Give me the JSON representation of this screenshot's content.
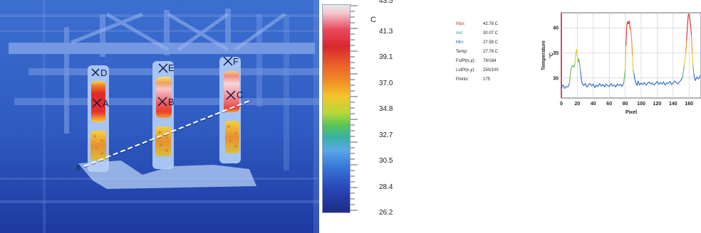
{
  "thermal": {
    "markers": [
      "D",
      "A",
      "E",
      "B",
      "F",
      "C",
      "X"
    ]
  },
  "colorbar": {
    "unit": "C",
    "ticks": [
      "43.5",
      "41.3",
      "39.1",
      "37.0",
      "34.8",
      "32.7",
      "30.5",
      "28.4",
      "26.2"
    ]
  },
  "stats": {
    "rows": [
      {
        "key": "Max:",
        "value": "42.78 C",
        "color": "#d03030"
      },
      {
        "key": "Avr:",
        "value": "30.07 C",
        "color": "#2e9e58"
      },
      {
        "key": "Min:",
        "value": "27.59 C",
        "color": "#2a56c8"
      },
      {
        "key": "Temp:",
        "value": "27.78 C",
        "color": "#222222"
      },
      {
        "key": "FstPt(x,y):",
        "value": "78/184",
        "color": "#222222"
      },
      {
        "key": "LstPt(x,y):",
        "value": "250/100",
        "color": "#222222"
      },
      {
        "key": "Points:",
        "value": "175",
        "color": "#222222"
      }
    ]
  },
  "chart_data": {
    "type": "line",
    "title": "",
    "xlabel": "Pixel",
    "ylabel": "Temperature",
    "yunit": "°C",
    "xlim": [
      0,
      175
    ],
    "ylim": [
      26,
      43
    ],
    "xticks": [
      0,
      20,
      40,
      60,
      80,
      100,
      120,
      140,
      160
    ],
    "yticks": [
      30,
      35,
      40
    ],
    "grid": true,
    "series": [
      {
        "x": [
          0,
          2,
          4,
          6,
          8,
          10,
          12,
          14,
          16,
          17,
          18,
          19,
          20,
          21,
          22,
          23,
          24,
          25,
          26,
          28,
          30,
          32,
          34,
          36,
          38,
          40,
          42,
          44,
          46,
          48,
          50,
          52,
          54,
          56,
          58,
          60,
          62,
          64,
          66,
          68,
          70,
          72,
          74,
          76,
          78,
          80,
          81,
          82,
          83,
          84,
          85,
          86,
          87,
          88,
          89,
          90,
          91,
          92,
          93,
          94,
          95,
          96,
          98,
          100,
          102,
          104,
          106,
          108,
          110,
          112,
          114,
          116,
          118,
          120,
          122,
          124,
          126,
          128,
          130,
          132,
          134,
          136,
          138,
          140,
          142,
          144,
          146,
          148,
          150,
          152,
          154,
          156,
          157,
          158,
          159,
          160,
          161,
          162,
          163,
          164,
          165,
          166,
          167,
          168,
          170,
          172,
          174
        ],
        "y": [
          28,
          28.6,
          27.9,
          28.3,
          28.2,
          28.8,
          31.8,
          32.5,
          32.2,
          33.0,
          34.6,
          35.7,
          34.5,
          33.2,
          33.8,
          32.6,
          31.4,
          29.8,
          29.0,
          28.5,
          28.9,
          28.2,
          28.6,
          28.9,
          28.4,
          28.8,
          28.1,
          28.6,
          28.3,
          28.9,
          28.4,
          28.7,
          28.2,
          28.8,
          28.5,
          28.3,
          28.9,
          28.4,
          28.6,
          28.2,
          28.8,
          28.5,
          28.7,
          28.3,
          28.9,
          31.5,
          36.5,
          40.5,
          41.2,
          40.8,
          41.4,
          40.1,
          39.5,
          38.0,
          34.5,
          31.5,
          30.8,
          29.8,
          29.2,
          28.8,
          28.5,
          29.4,
          28.6,
          29.0,
          28.7,
          29.1,
          28.6,
          28.9,
          29.2,
          28.8,
          29.0,
          28.6,
          28.9,
          29.3,
          28.7,
          29.1,
          28.8,
          29.2,
          28.6,
          29.0,
          28.9,
          29.3,
          28.7,
          29.0,
          29.4,
          29.1,
          28.8,
          29.2,
          29.6,
          30.2,
          32.5,
          35.0,
          37.5,
          40.5,
          42.5,
          42.8,
          41.9,
          40.6,
          38.5,
          35.0,
          32.5,
          30.8,
          29.9,
          29.5,
          30.2,
          29.8,
          30.4
        ]
      }
    ]
  }
}
